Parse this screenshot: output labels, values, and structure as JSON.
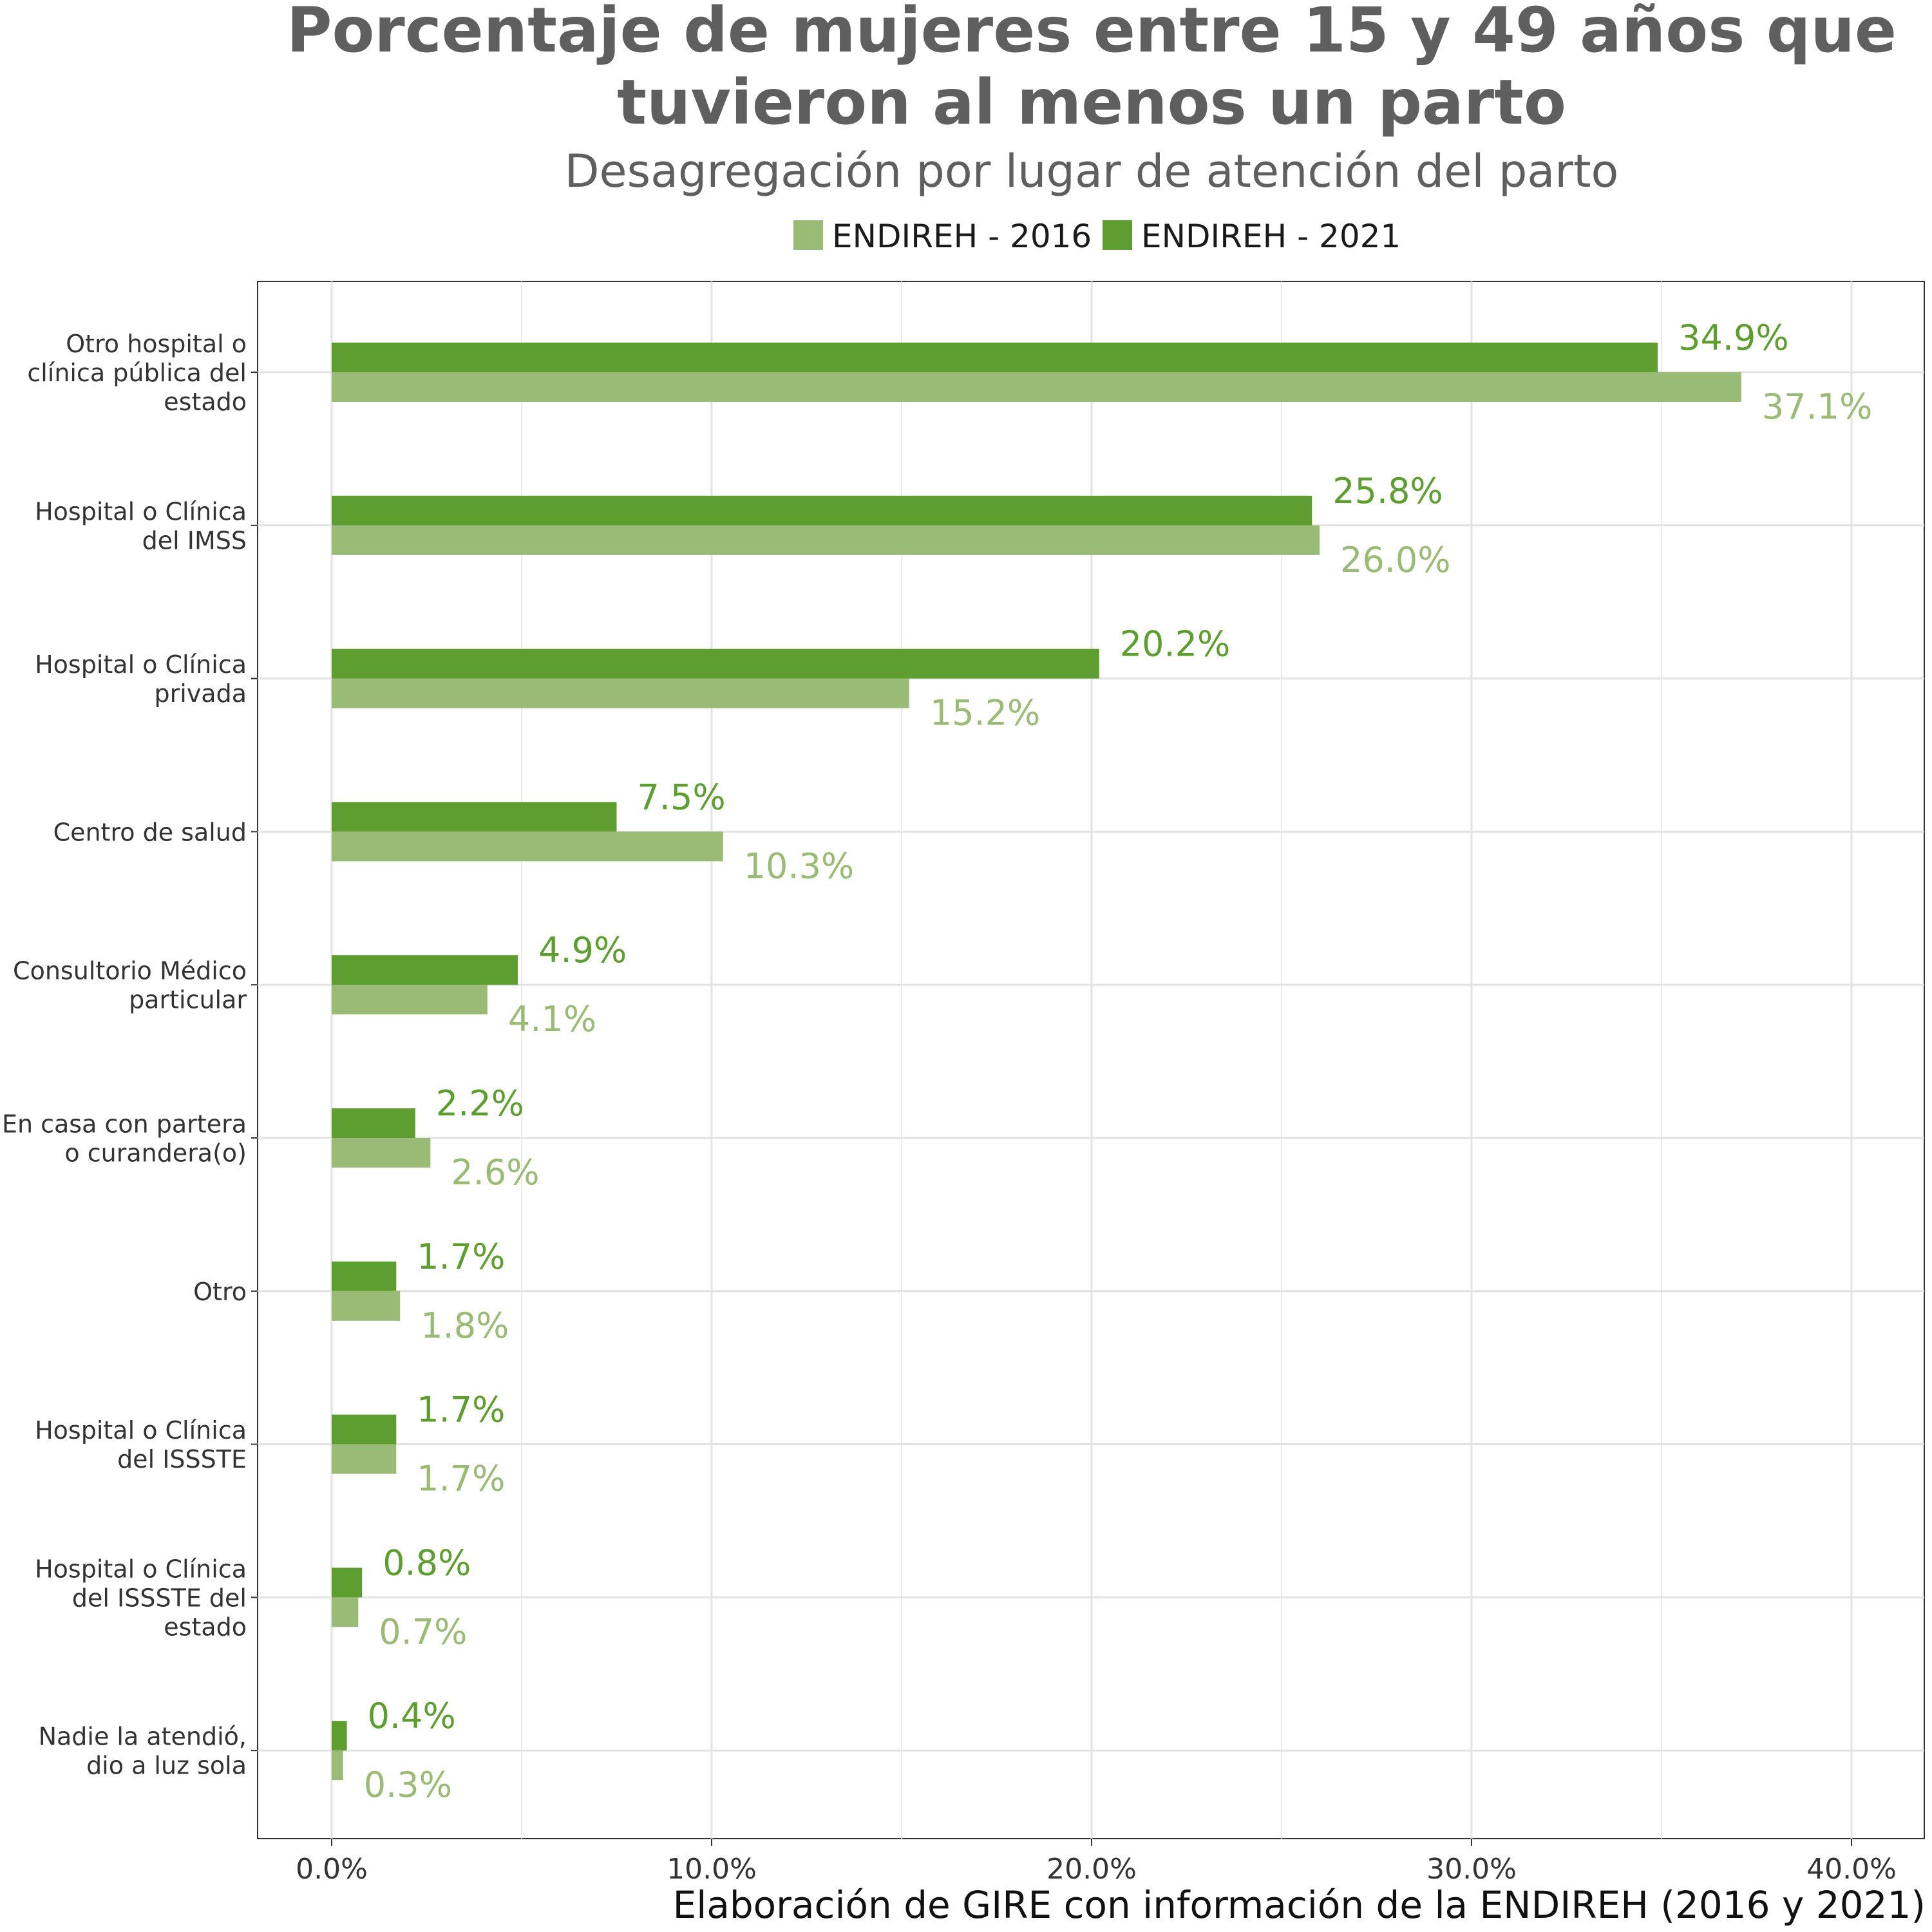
{
  "chart_data": {
    "type": "bar",
    "orientation": "horizontal",
    "title": "Porcentaje de mujeres entre 15 y 49 años que tuvieron al menos un parto",
    "title_lines": [
      "Porcentaje de mujeres entre 15 y 49 años que",
      "tuvieron al menos un parto"
    ],
    "subtitle": "Desagregación por lugar de atención del parto",
    "caption": "Elaboración de GIRE con información de la ENDIREH (2016 y 2021)",
    "legend_position": "top",
    "grid": true,
    "xlim": [
      0,
      40
    ],
    "x_ticks": [
      0,
      10,
      20,
      30,
      40
    ],
    "x_tick_labels": [
      "0.0%",
      "10.0%",
      "20.0%",
      "30.0%",
      "40.0%"
    ],
    "categories": [
      [
        "Otro hospital o",
        "clínica pública del",
        "estado"
      ],
      [
        "Hospital o Clínica",
        "del IMSS"
      ],
      [
        "Hospital o Clínica",
        "privada"
      ],
      [
        "Centro de salud"
      ],
      [
        "Consultorio Médico",
        "particular"
      ],
      [
        "En casa con partera",
        "o curandera(o)"
      ],
      [
        "Otro"
      ],
      [
        "Hospital o Clínica",
        "del ISSSTE"
      ],
      [
        "Hospital o Clínica",
        "del ISSSTE del",
        "estado"
      ],
      [
        "Nadie la atendió,",
        "dio a luz sola"
      ]
    ],
    "series": [
      {
        "name": "ENDIREH - 2016",
        "color": "#9abb76",
        "values": [
          37.1,
          26.0,
          15.2,
          10.3,
          4.1,
          2.6,
          1.8,
          1.7,
          0.7,
          0.3
        ],
        "labels": [
          "37.1%",
          "26.0%",
          "15.2%",
          "10.3%",
          "4.1%",
          "2.6%",
          "1.8%",
          "1.7%",
          "0.7%",
          "0.3%"
        ]
      },
      {
        "name": "ENDIREH - 2021",
        "color": "#5e9e31",
        "values": [
          34.9,
          25.8,
          20.2,
          7.5,
          4.9,
          2.2,
          1.7,
          1.7,
          0.8,
          0.4
        ],
        "labels": [
          "34.9%",
          "25.8%",
          "20.2%",
          "7.5%",
          "4.9%",
          "2.2%",
          "1.7%",
          "1.7%",
          "0.8%",
          "0.4%"
        ]
      }
    ]
  }
}
